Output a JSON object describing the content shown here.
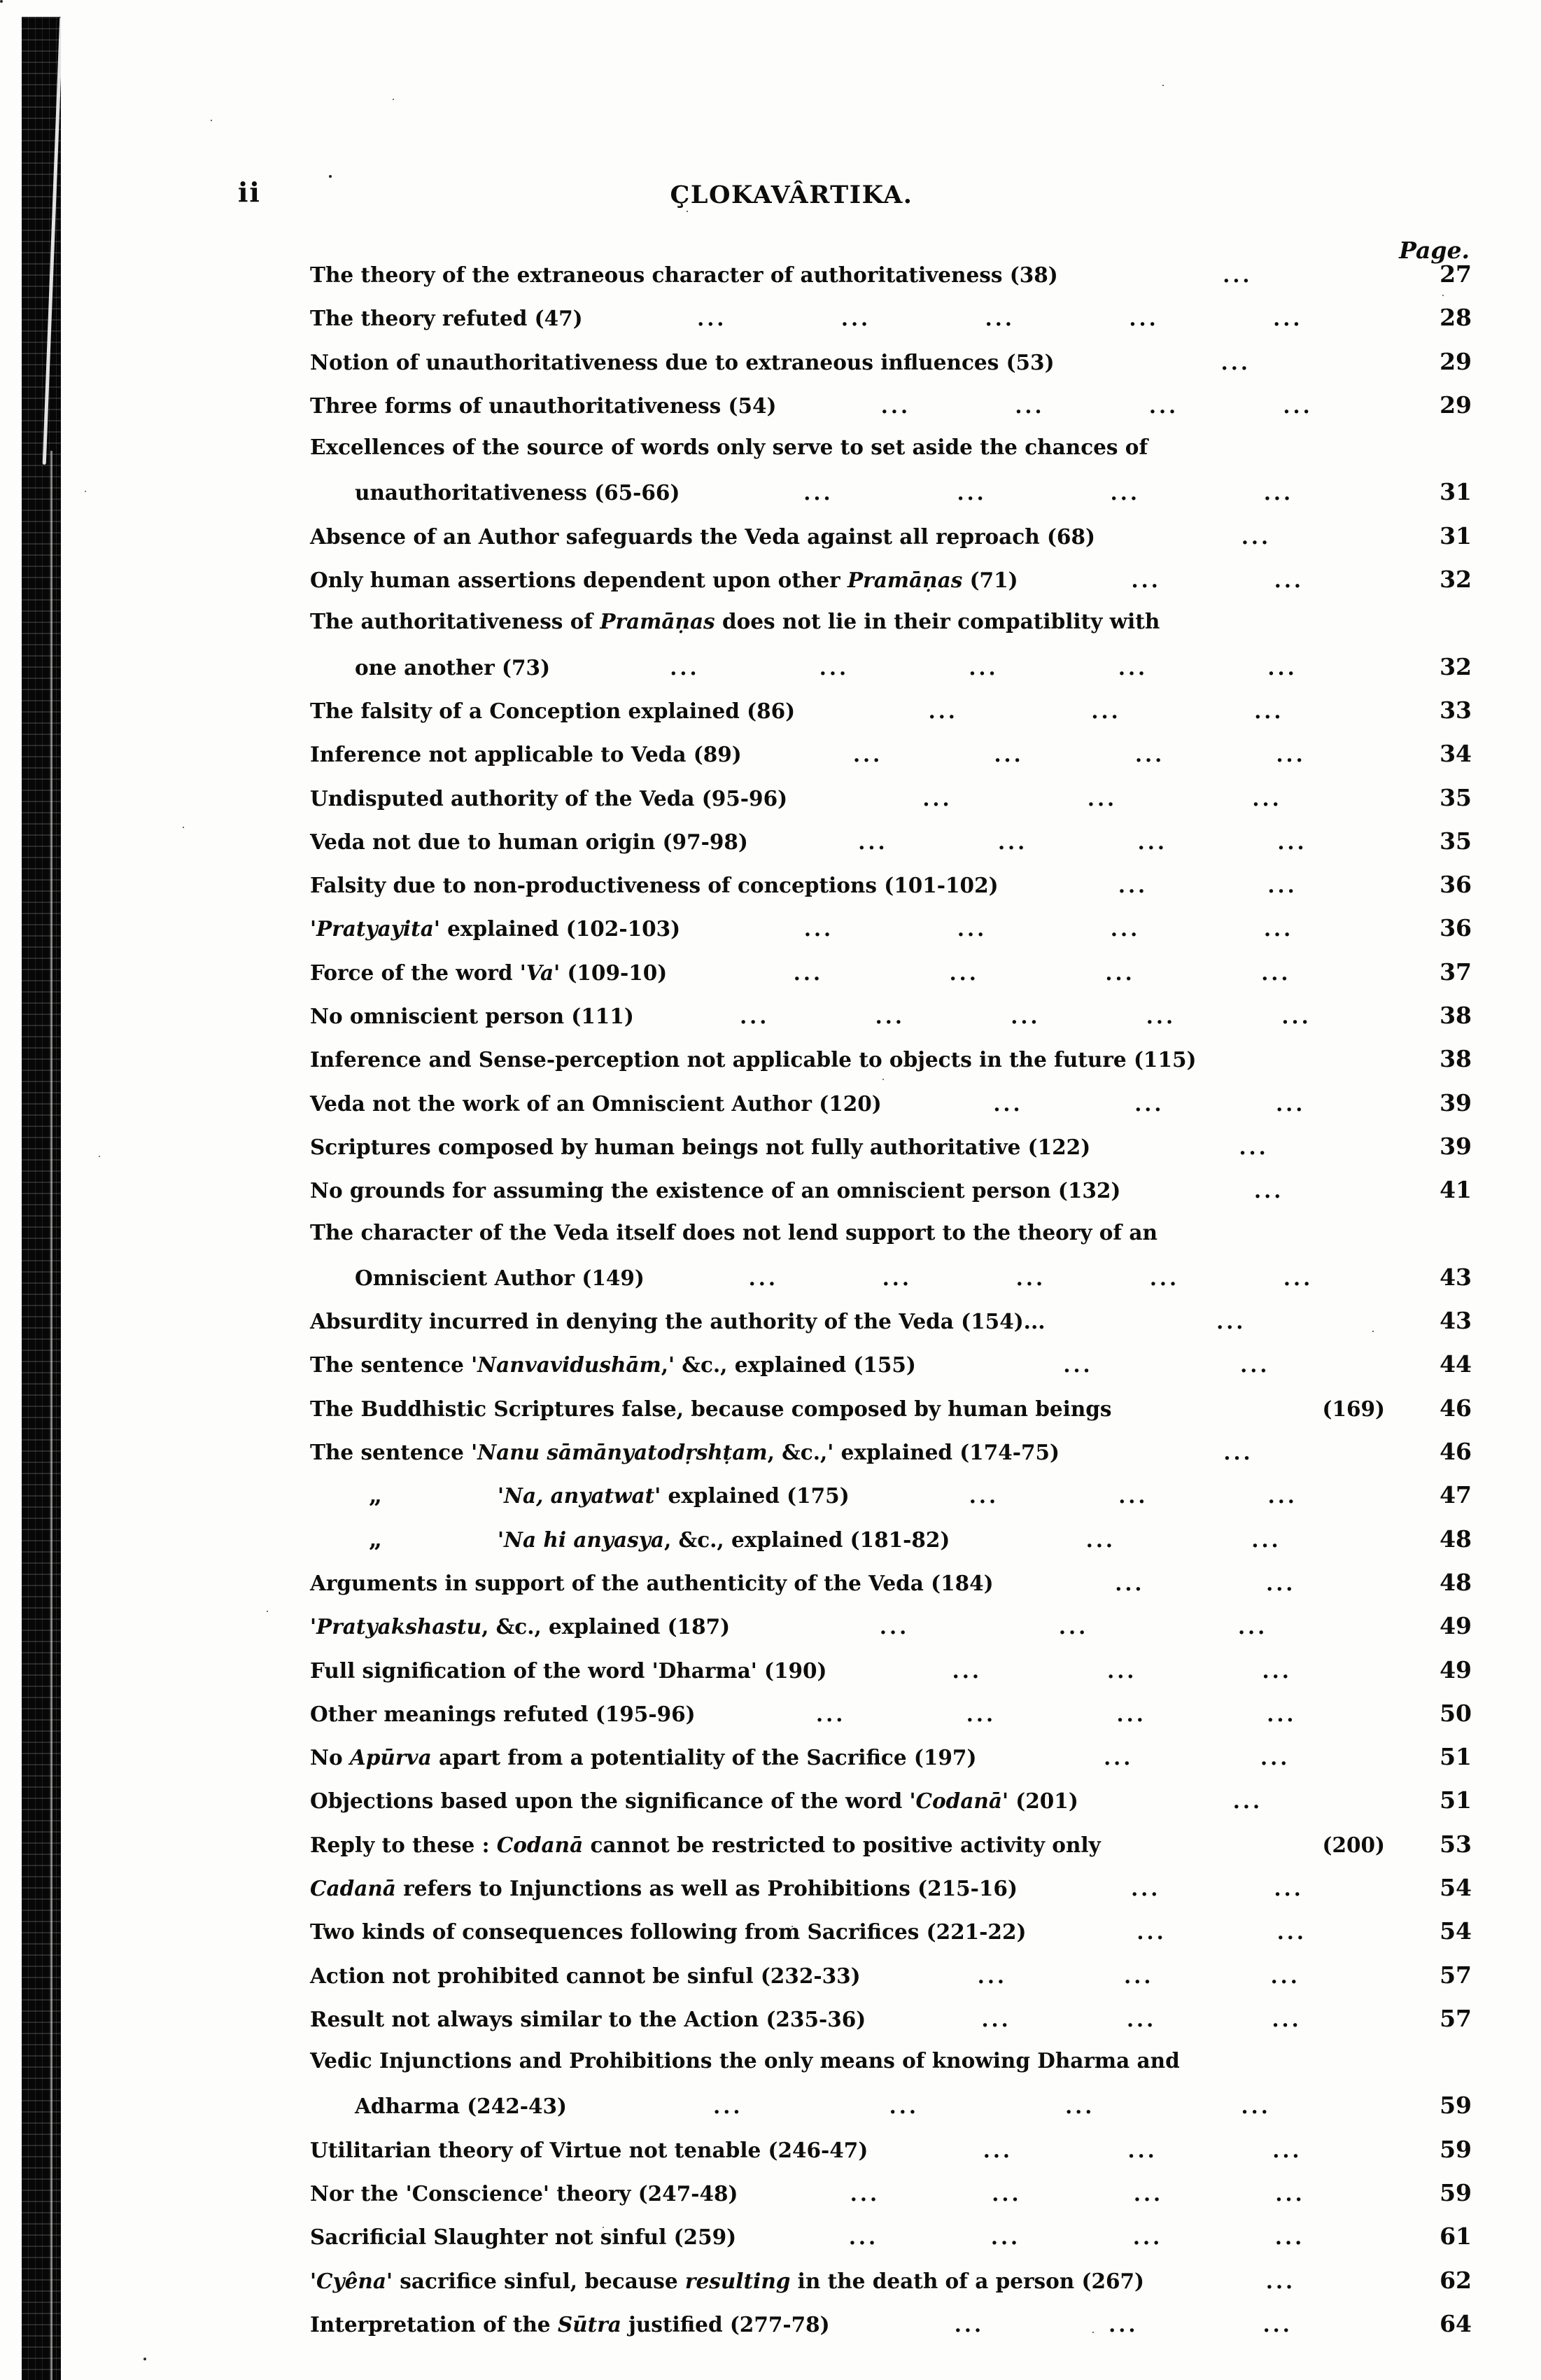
{
  "page_header": {
    "folio": "ii",
    "title": "ÇLOKAVÂRTIKA.",
    "page_label": "Page."
  },
  "toc": {
    "rows": [
      {
        "text": "The theory of the extraneous character of authoritativeness (38)",
        "indent": 0,
        "ditto": false,
        "dots": 1,
        "page": "27"
      },
      {
        "text": "The theory refuted (47)",
        "indent": 0,
        "ditto": false,
        "dots": 5,
        "page": "28"
      },
      {
        "text": "Notion of unauthoritativeness due to extraneous influences (53)",
        "indent": 0,
        "ditto": false,
        "dots": 1,
        "page": "29"
      },
      {
        "text": "Three forms of unauthoritativeness (54)",
        "indent": 0,
        "ditto": false,
        "dots": 4,
        "page": "29"
      },
      {
        "text": "Excellences of the source of words only serve to set aside the chances of",
        "indent": 0,
        "ditto": false,
        "dots": 0,
        "page": ""
      },
      {
        "text": "unauthoritativeness (65-66)",
        "indent": 1,
        "ditto": false,
        "dots": 4,
        "page": "31"
      },
      {
        "text": "Absence of an Author safeguards the Veda against all reproach (68)",
        "indent": 0,
        "ditto": false,
        "dots": 1,
        "page": "31"
      },
      {
        "text": "Only human assertions dependent upon other *Pramāṇas* (71)",
        "indent": 0,
        "ditto": false,
        "dots": 2,
        "page": "32"
      },
      {
        "text": "The authoritativeness of *Pramāṇas* does not lie in their compatiblity with",
        "indent": 0,
        "ditto": false,
        "dots": 0,
        "page": ""
      },
      {
        "text": "one another (73)",
        "indent": 1,
        "ditto": false,
        "dots": 5,
        "page": "32"
      },
      {
        "text": "The falsity of a Conception explained (86)",
        "indent": 0,
        "ditto": false,
        "dots": 3,
        "page": "33"
      },
      {
        "text": "Inference not applicable to Veda (89)",
        "indent": 0,
        "ditto": false,
        "dots": 4,
        "page": "34"
      },
      {
        "text": "Undisputed authority of the Veda (95-96)",
        "indent": 0,
        "ditto": false,
        "dots": 3,
        "page": "35"
      },
      {
        "text": "Veda not due to human origin (97-98)",
        "indent": 0,
        "ditto": false,
        "dots": 4,
        "page": "35"
      },
      {
        "text": "Falsity due to non-productiveness of conceptions (101-102)",
        "indent": 0,
        "ditto": false,
        "dots": 2,
        "page": "36"
      },
      {
        "text": "'*Pratyayita*' explained (102-103)",
        "indent": 0,
        "ditto": false,
        "dots": 4,
        "page": "36"
      },
      {
        "text": "Force of the word '*Va*' (109-10)",
        "indent": 0,
        "ditto": false,
        "dots": 4,
        "page": "37"
      },
      {
        "text": "No omniscient person (111)",
        "indent": 0,
        "ditto": false,
        "dots": 5,
        "page": "38"
      },
      {
        "text": "Inference and Sense-perception not applicable to objects in the future (115)",
        "indent": 0,
        "ditto": false,
        "dots": 0,
        "page": "38"
      },
      {
        "text": "Veda not the work of an Omniscient Author (120)",
        "indent": 0,
        "ditto": false,
        "dots": 3,
        "page": "39"
      },
      {
        "text": "Scriptures composed by human beings not fully authoritative (122)",
        "indent": 0,
        "ditto": false,
        "dots": 1,
        "page": "39"
      },
      {
        "text": "No grounds for assuming the existence of an omniscient person (132)",
        "indent": 0,
        "ditto": false,
        "dots": 1,
        "page": "41"
      },
      {
        "text": "The character of the Veda itself does not lend support to the theory of an",
        "indent": 0,
        "ditto": false,
        "dots": 0,
        "page": ""
      },
      {
        "text": "Omniscient Author (149)",
        "indent": 1,
        "ditto": false,
        "dots": 5,
        "page": "43"
      },
      {
        "text": "Absurdity incurred in denying the authority of the Veda (154)...",
        "indent": 0,
        "ditto": false,
        "dots": 1,
        "page": "43"
      },
      {
        "text": "The sentence '*Nanvavidushām*,' &c., explained (155)",
        "indent": 0,
        "ditto": false,
        "dots": 2,
        "page": "44"
      },
      {
        "text": "The Buddhistic Scriptures false, because composed by human beings",
        "indent": 0,
        "ditto": false,
        "dots": 0,
        "tail": "(169)",
        "page": "46"
      },
      {
        "text": "The sentence '*Nanu sāmānyatodṛshṭam*, &c.,' explained (174-75)",
        "indent": 0,
        "ditto": false,
        "dots": 1,
        "page": "46"
      },
      {
        "text": "'*Na, anyatwat*' explained (175)",
        "indent": 0,
        "ditto": true,
        "dots": 3,
        "page": "47"
      },
      {
        "text": "'*Na hi anyasya*, &c., explained (181-82)",
        "indent": 0,
        "ditto": true,
        "dots": 2,
        "page": "48"
      },
      {
        "text": "Arguments in support of the authenticity of the Veda (184)",
        "indent": 0,
        "ditto": false,
        "dots": 2,
        "page": "48"
      },
      {
        "text": "'*Pratyakshastu*, &c., explained (187)",
        "indent": 0,
        "ditto": false,
        "dots": 3,
        "page": "49"
      },
      {
        "text": "Full signification of the word 'Dharma' (190)",
        "indent": 0,
        "ditto": false,
        "dots": 3,
        "page": "49"
      },
      {
        "text": "Other meanings refuted (195-96)",
        "indent": 0,
        "ditto": false,
        "dots": 4,
        "page": "50"
      },
      {
        "text": "No *Apūrva* apart from a potentiality of the Sacrifice (197)",
        "indent": 0,
        "ditto": false,
        "dots": 2,
        "page": "51"
      },
      {
        "text": "Objections based upon the significance of the word '*Codanā*' (201)",
        "indent": 0,
        "ditto": false,
        "dots": 1,
        "page": "51"
      },
      {
        "text": "Reply to these : *Codanā* cannot be restricted to positive activity only",
        "indent": 0,
        "ditto": false,
        "dots": 0,
        "tail": "(200)",
        "page": "53"
      },
      {
        "text": "*Cadanā* refers to Injunctions as well as Prohibitions (215-16)",
        "indent": 0,
        "ditto": false,
        "dots": 2,
        "page": "54"
      },
      {
        "text": "Two kinds of consequences following from Sacrifices (221-22)",
        "indent": 0,
        "ditto": false,
        "dots": 2,
        "page": "54"
      },
      {
        "text": "Action not prohibited cannot be sinful (232-33)",
        "indent": 0,
        "ditto": false,
        "dots": 3,
        "page": "57"
      },
      {
        "text": "Result not always similar to the Action (235-36)",
        "indent": 0,
        "ditto": false,
        "dots": 3,
        "page": "57"
      },
      {
        "text": "Vedic Injunctions and Prohibitions the only means of knowing Dharma and",
        "indent": 0,
        "ditto": false,
        "dots": 0,
        "page": ""
      },
      {
        "text": "Adharma (242-43)",
        "indent": 1,
        "ditto": false,
        "dots": 4,
        "page": "59"
      },
      {
        "text": "Utilitarian theory of Virtue not tenable (246-47)",
        "indent": 0,
        "ditto": false,
        "dots": 3,
        "page": "59"
      },
      {
        "text": "Nor the 'Conscience' theory (247-48)",
        "indent": 0,
        "ditto": false,
        "dots": 4,
        "page": "59"
      },
      {
        "text": "Sacrificial Slaughter not sinful (259)",
        "indent": 0,
        "ditto": false,
        "dots": 4,
        "page": "61"
      },
      {
        "text": "'*Cyêna*' sacrifice sinful, because *resulting* in the death of a person (267)",
        "indent": 0,
        "ditto": false,
        "dots": 1,
        "page": "62"
      },
      {
        "text": "Interpretation of the *Sūtra* justified (277-78)",
        "indent": 0,
        "ditto": false,
        "dots": 3,
        "page": "64"
      }
    ]
  }
}
